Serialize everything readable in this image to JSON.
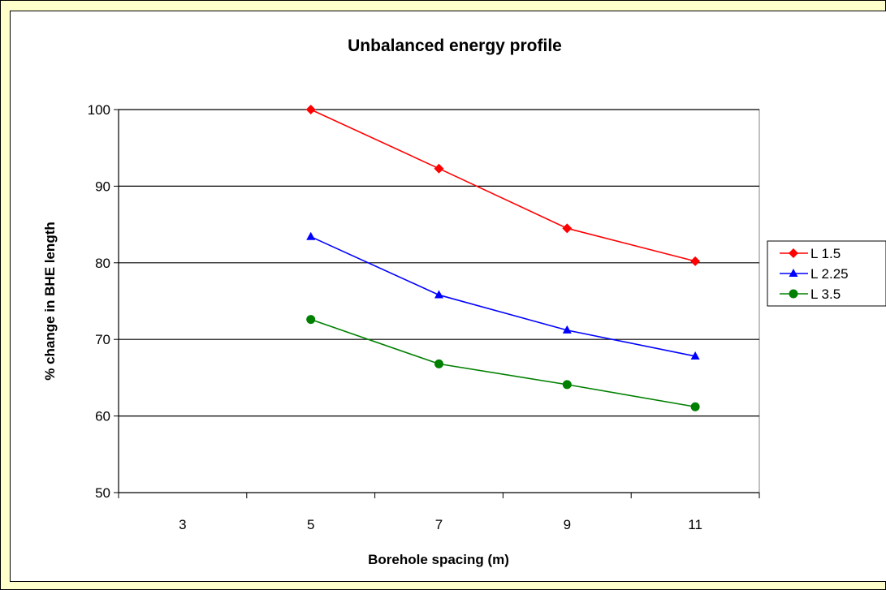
{
  "chart_data": {
    "type": "line",
    "title": "Unbalanced energy profile",
    "xlabel": "Borehole spacing (m)",
    "ylabel": "% change in BHE length",
    "categories": [
      "3",
      "5",
      "7",
      "9",
      "11"
    ],
    "ylim": [
      50,
      100
    ],
    "yticks": [
      "50",
      "60",
      "70",
      "80",
      "90",
      "100"
    ],
    "grid": true,
    "legend_position": "right",
    "series": [
      {
        "name": "L 1.5",
        "color": "#ff0000",
        "marker": "diamond",
        "values": [
          null,
          100,
          92.3,
          84.5,
          80.2
        ]
      },
      {
        "name": "L 2.25",
        "color": "#0000ff",
        "marker": "triangle",
        "values": [
          null,
          83.4,
          75.8,
          71.2,
          67.8
        ]
      },
      {
        "name": "L 3.5",
        "color": "#008000",
        "marker": "circle",
        "values": [
          null,
          72.6,
          66.8,
          64.1,
          61.2
        ]
      }
    ]
  }
}
